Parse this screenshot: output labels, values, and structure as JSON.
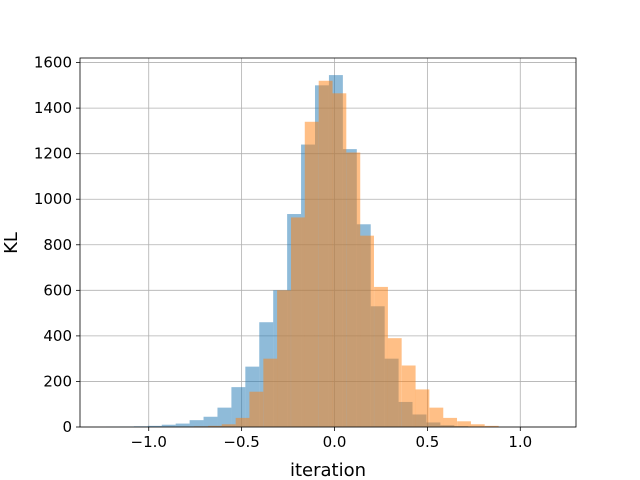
{
  "chart_data": {
    "type": "histogram",
    "title": "",
    "xlabel": "iteration",
    "ylabel": "KL",
    "xlim": [
      -1.37,
      1.3
    ],
    "ylim": [
      0,
      1620
    ],
    "grid": true,
    "legend": "none",
    "x_ticks": [
      {
        "value": -1.0,
        "label": "−1.0"
      },
      {
        "value": -0.5,
        "label": "−0.5"
      },
      {
        "value": 0.0,
        "label": "0.0"
      },
      {
        "value": 0.5,
        "label": "0.5"
      },
      {
        "value": 1.0,
        "label": "1.0"
      }
    ],
    "y_ticks": [
      {
        "value": 0,
        "label": "0"
      },
      {
        "value": 200,
        "label": "200"
      },
      {
        "value": 400,
        "label": "400"
      },
      {
        "value": 600,
        "label": "600"
      },
      {
        "value": 800,
        "label": "800"
      },
      {
        "value": 1000,
        "label": "1000"
      },
      {
        "value": 1200,
        "label": "1200"
      },
      {
        "value": 1400,
        "label": "1400"
      },
      {
        "value": 1600,
        "label": "1600"
      }
    ],
    "series": [
      {
        "color": "#1f77b4",
        "opacity": 0.5,
        "bin_width": 0.075,
        "bins": [
          {
            "x0": -1.23,
            "count": 1
          },
          {
            "x0": -1.155,
            "count": 2
          },
          {
            "x0": -1.08,
            "count": 3
          },
          {
            "x0": -1.005,
            "count": 5
          },
          {
            "x0": -0.93,
            "count": 10
          },
          {
            "x0": -0.855,
            "count": 15
          },
          {
            "x0": -0.78,
            "count": 30
          },
          {
            "x0": -0.705,
            "count": 45
          },
          {
            "x0": -0.63,
            "count": 85
          },
          {
            "x0": -0.555,
            "count": 175
          },
          {
            "x0": -0.48,
            "count": 265
          },
          {
            "x0": -0.405,
            "count": 460
          },
          {
            "x0": -0.33,
            "count": 600
          },
          {
            "x0": -0.255,
            "count": 935
          },
          {
            "x0": -0.18,
            "count": 1240
          },
          {
            "x0": -0.105,
            "count": 1500
          },
          {
            "x0": -0.03,
            "count": 1545
          },
          {
            "x0": 0.045,
            "count": 1220
          },
          {
            "x0": 0.12,
            "count": 890
          },
          {
            "x0": 0.195,
            "count": 530
          },
          {
            "x0": 0.27,
            "count": 300
          },
          {
            "x0": 0.345,
            "count": 110
          },
          {
            "x0": 0.42,
            "count": 55
          },
          {
            "x0": 0.495,
            "count": 20
          },
          {
            "x0": 0.57,
            "count": 8
          },
          {
            "x0": 0.645,
            "count": 4
          },
          {
            "x0": 0.72,
            "count": 2
          },
          {
            "x0": 0.795,
            "count": 1
          }
        ]
      },
      {
        "color": "#ff7f0e",
        "opacity": 0.5,
        "bin_width": 0.0745,
        "bins": [
          {
            "x0": -0.905,
            "count": 1
          },
          {
            "x0": -0.83,
            "count": 2
          },
          {
            "x0": -0.756,
            "count": 3
          },
          {
            "x0": -0.681,
            "count": 5
          },
          {
            "x0": -0.607,
            "count": 12
          },
          {
            "x0": -0.532,
            "count": 40
          },
          {
            "x0": -0.458,
            "count": 155
          },
          {
            "x0": -0.383,
            "count": 300
          },
          {
            "x0": -0.309,
            "count": 600
          },
          {
            "x0": -0.234,
            "count": 920
          },
          {
            "x0": -0.16,
            "count": 1340
          },
          {
            "x0": -0.085,
            "count": 1520
          },
          {
            "x0": -0.011,
            "count": 1465
          },
          {
            "x0": 0.064,
            "count": 1205
          },
          {
            "x0": 0.138,
            "count": 840
          },
          {
            "x0": 0.213,
            "count": 615
          },
          {
            "x0": 0.287,
            "count": 390
          },
          {
            "x0": 0.362,
            "count": 270
          },
          {
            "x0": 0.436,
            "count": 165
          },
          {
            "x0": 0.511,
            "count": 85
          },
          {
            "x0": 0.585,
            "count": 40
          },
          {
            "x0": 0.66,
            "count": 25
          },
          {
            "x0": 0.734,
            "count": 12
          },
          {
            "x0": 0.809,
            "count": 5
          }
        ]
      }
    ]
  }
}
